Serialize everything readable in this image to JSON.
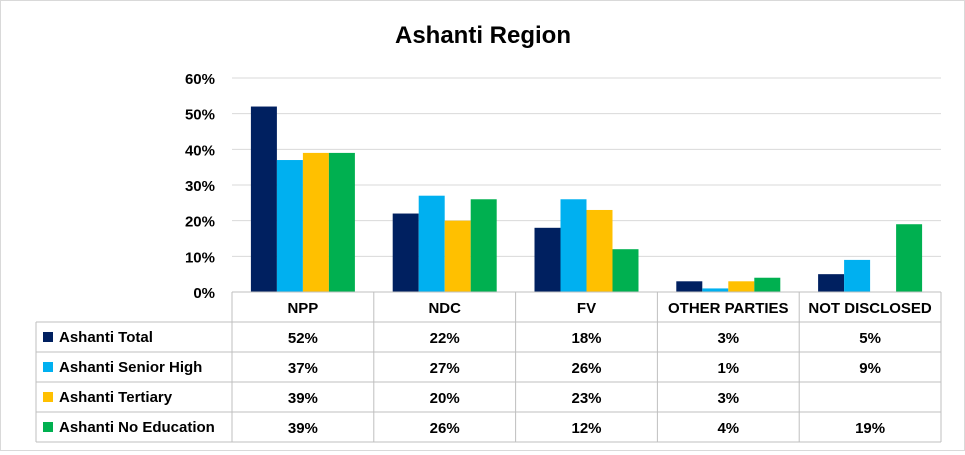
{
  "chart_data": {
    "type": "bar",
    "title": "Ashanti Region",
    "categories": [
      "NPP",
      "NDC",
      "FV",
      "OTHER PARTIES",
      "NOT DISCLOSED"
    ],
    "ylim": [
      0,
      60
    ],
    "yticks": [
      "0%",
      "10%",
      "20%",
      "30%",
      "40%",
      "50%",
      "60%"
    ],
    "grid": true,
    "legend": "data-table",
    "series": [
      {
        "name": "Ashanti Total",
        "color": "#002060",
        "values": [
          52,
          22,
          18,
          3,
          5
        ],
        "labels": [
          "52%",
          "22%",
          "18%",
          "3%",
          "5%"
        ]
      },
      {
        "name": "Ashanti Senior High",
        "color": "#00b0f0",
        "values": [
          37,
          27,
          26,
          1,
          9
        ],
        "labels": [
          "37%",
          "27%",
          "26%",
          "1%",
          "9%"
        ]
      },
      {
        "name": "Ashanti Tertiary",
        "color": "#ffc000",
        "values": [
          39,
          20,
          23,
          3,
          null
        ],
        "labels": [
          "39%",
          "20%",
          "23%",
          "3%",
          ""
        ]
      },
      {
        "name": "Ashanti No Education",
        "color": "#00b050",
        "values": [
          39,
          26,
          12,
          4,
          19
        ],
        "labels": [
          "39%",
          "26%",
          "12%",
          "4%",
          "19%"
        ]
      }
    ]
  }
}
